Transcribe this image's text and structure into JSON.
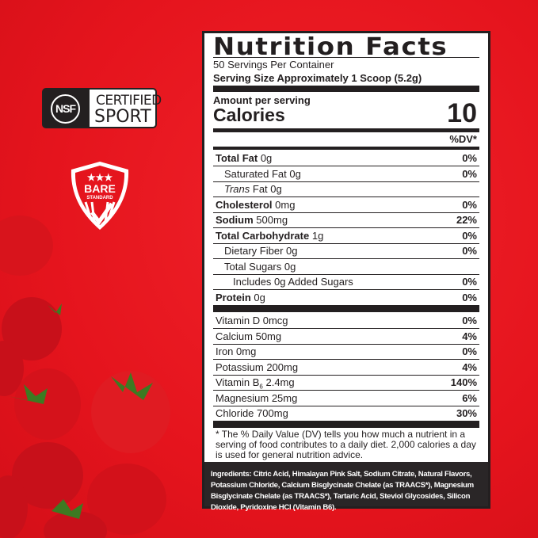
{
  "badges": {
    "nsf_logo": "NSF",
    "nsf_line1": "CERTIFIED",
    "nsf_line2": "SPORT",
    "bare_line1": "BARE",
    "bare_line2": "STANDARD"
  },
  "colors": {
    "background": "#e5141d",
    "label_ink": "#231f20",
    "ingredients_bg": "#2a2627"
  },
  "label": {
    "title": "Nutrition Facts",
    "servings": "50 Servings Per Container",
    "serving_size": "Serving Size Approximately 1 Scoop (5.2g)",
    "amount_per_serving": "Amount per serving",
    "calories_label": "Calories",
    "calories_value": "10",
    "dv_header": "%DV*",
    "macros": [
      {
        "name": "Total Fat",
        "amount": "0g",
        "dv": "0%",
        "bold": true,
        "indent": 0
      },
      {
        "name": "Saturated Fat",
        "amount": "0g",
        "dv": "0%",
        "bold": false,
        "indent": 1
      },
      {
        "name": "Trans",
        "amount": "Fat 0g",
        "dv": "",
        "bold": false,
        "indent": 1,
        "italic": true
      },
      {
        "name": "Cholesterol",
        "amount": "0mg",
        "dv": "0%",
        "bold": true,
        "indent": 0
      },
      {
        "name": "Sodium",
        "amount": "500mg",
        "dv": "22%",
        "bold": true,
        "indent": 0
      },
      {
        "name": "Total Carbohydrate",
        "amount": "1g",
        "dv": "0%",
        "bold": true,
        "indent": 0
      },
      {
        "name": "Dietary Fiber",
        "amount": "0g",
        "dv": "0%",
        "bold": false,
        "indent": 1
      },
      {
        "name": "Total Sugars",
        "amount": "0g",
        "dv": "",
        "bold": false,
        "indent": 1
      },
      {
        "name": "Includes 0g Added Sugars",
        "amount": "",
        "dv": "0%",
        "bold": false,
        "indent": 2
      },
      {
        "name": "Protein",
        "amount": "0g",
        "dv": "0%",
        "bold": true,
        "indent": 0
      }
    ],
    "micros": [
      {
        "name": "Vitamin D",
        "amount": "0mcg",
        "dv": "0%"
      },
      {
        "name": "Calcium",
        "amount": "50mg",
        "dv": "4%"
      },
      {
        "name": "Iron",
        "amount": "0mg",
        "dv": "0%"
      },
      {
        "name": "Potassium",
        "amount": "200mg",
        "dv": "4%"
      },
      {
        "name": "Vitamin B",
        "sub": "6",
        "amount": "2.4mg",
        "dv": "140%"
      },
      {
        "name": "Magnesium",
        "amount": "25mg",
        "dv": "6%"
      },
      {
        "name": "Chloride",
        "amount": "700mg",
        "dv": "30%"
      }
    ],
    "footnote": "* The % Daily Value (DV) tells you how much a nutrient in a serving of food contributes to a daily diet. 2,000 calories a day is used for general nutrition advice.",
    "ingredients_label": "Ingredients:",
    "ingredients": "Citric Acid, Himalayan Pink Salt, Sodium Citrate, Natural Flavors, Potassium Chloride, Calcium Bisglycinate Chelate (as TRAACS*), Magnesium Bisglycinate Chelate (as TRAACS*), Tartaric Acid, Steviol Glycosides, Silicon Dioxide, Pyridoxine HCl (Vitamin B6)."
  }
}
